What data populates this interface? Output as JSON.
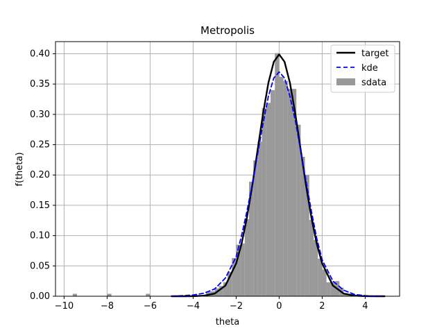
{
  "chart_data": {
    "type": "histogram+line",
    "title": "Metropolis",
    "xlabel": "theta",
    "ylabel": "f(theta)",
    "xlim": [
      -10.4,
      5.6
    ],
    "ylim": [
      0,
      0.42
    ],
    "grid": true,
    "legend_placement": "top-right",
    "x_ticks": [
      -10,
      -8,
      -6,
      -4,
      -2,
      0,
      2,
      4
    ],
    "y_ticks": [
      0.0,
      0.05,
      0.1,
      0.15,
      0.2,
      0.25,
      0.3,
      0.35,
      0.4
    ],
    "series": [
      {
        "name": "target",
        "kind": "line",
        "color": "#000000",
        "style": "solid",
        "x": [
          -5.0,
          -4.5,
          -4.0,
          -3.5,
          -3.0,
          -2.5,
          -2.0,
          -1.75,
          -1.5,
          -1.25,
          -1.0,
          -0.75,
          -0.5,
          -0.25,
          0.0,
          0.25,
          0.5,
          0.75,
          1.0,
          1.25,
          1.5,
          1.75,
          2.0,
          2.5,
          3.0,
          3.5,
          4.0,
          4.5,
          4.9
        ],
        "y": [
          0.0,
          0.0,
          0.0001,
          0.0009,
          0.0044,
          0.0175,
          0.054,
          0.0863,
          0.1295,
          0.1826,
          0.242,
          0.3011,
          0.3521,
          0.3867,
          0.3989,
          0.3867,
          0.3521,
          0.3011,
          0.242,
          0.1826,
          0.1295,
          0.0863,
          0.054,
          0.0175,
          0.0044,
          0.0009,
          0.0001,
          0.0,
          0.0
        ]
      },
      {
        "name": "kde",
        "kind": "line",
        "color": "#0000ff",
        "style": "dashed",
        "x": [
          -5.0,
          -4.5,
          -4.0,
          -3.5,
          -3.0,
          -2.5,
          -2.0,
          -1.75,
          -1.5,
          -1.25,
          -1.0,
          -0.75,
          -0.5,
          -0.25,
          0.0,
          0.25,
          0.5,
          0.75,
          1.0,
          1.25,
          1.5,
          1.75,
          2.0,
          2.5,
          3.0,
          3.5,
          4.0,
          4.5,
          4.9
        ],
        "y": [
          0.0,
          0.001,
          0.002,
          0.005,
          0.012,
          0.03,
          0.065,
          0.1,
          0.14,
          0.185,
          0.235,
          0.285,
          0.33,
          0.36,
          0.37,
          0.36,
          0.33,
          0.29,
          0.24,
          0.19,
          0.14,
          0.095,
          0.06,
          0.025,
          0.01,
          0.003,
          0.001,
          0.0,
          0.0
        ]
      },
      {
        "name": "sdata",
        "kind": "histogram",
        "color": "#999999",
        "bin_width": 0.2,
        "bins": [
          {
            "x0": -9.6,
            "height": 0.004
          },
          {
            "x0": -8.0,
            "height": 0.004
          },
          {
            "x0": -6.2,
            "height": 0.004
          },
          {
            "x0": -4.0,
            "height": 0.002
          },
          {
            "x0": -3.6,
            "height": 0.002
          },
          {
            "x0": -3.4,
            "height": 0.008
          },
          {
            "x0": -3.2,
            "height": 0.008
          },
          {
            "x0": -3.0,
            "height": 0.013
          },
          {
            "x0": -2.8,
            "height": 0.017
          },
          {
            "x0": -2.6,
            "height": 0.023
          },
          {
            "x0": -2.4,
            "height": 0.04
          },
          {
            "x0": -2.2,
            "height": 0.063
          },
          {
            "x0": -2.0,
            "height": 0.085
          },
          {
            "x0": -1.8,
            "height": 0.087
          },
          {
            "x0": -1.6,
            "height": 0.127
          },
          {
            "x0": -1.4,
            "height": 0.189
          },
          {
            "x0": -1.2,
            "height": 0.224
          },
          {
            "x0": -1.0,
            "height": 0.255
          },
          {
            "x0": -0.8,
            "height": 0.31
          },
          {
            "x0": -0.6,
            "height": 0.319
          },
          {
            "x0": -0.4,
            "height": 0.34
          },
          {
            "x0": -0.2,
            "height": 0.401
          },
          {
            "x0": 0.0,
            "height": 0.362
          },
          {
            "x0": 0.2,
            "height": 0.355
          },
          {
            "x0": 0.4,
            "height": 0.342
          },
          {
            "x0": 0.6,
            "height": 0.342
          },
          {
            "x0": 0.8,
            "height": 0.283
          },
          {
            "x0": 1.0,
            "height": 0.23
          },
          {
            "x0": 1.2,
            "height": 0.2
          },
          {
            "x0": 1.4,
            "height": 0.126
          },
          {
            "x0": 1.6,
            "height": 0.093
          },
          {
            "x0": 1.8,
            "height": 0.062
          },
          {
            "x0": 2.0,
            "height": 0.044
          },
          {
            "x0": 2.2,
            "height": 0.023
          },
          {
            "x0": 2.4,
            "height": 0.024
          },
          {
            "x0": 2.6,
            "height": 0.025
          },
          {
            "x0": 2.8,
            "height": 0.014
          },
          {
            "x0": 3.0,
            "height": 0.005
          },
          {
            "x0": 3.2,
            "height": 0.004
          },
          {
            "x0": 3.4,
            "height": 0.002
          },
          {
            "x0": 3.6,
            "height": 0.002
          },
          {
            "x0": 3.8,
            "height": 0.001
          }
        ]
      }
    ],
    "legend": [
      {
        "label": "target",
        "kind": "line",
        "color": "#000000",
        "style": "solid"
      },
      {
        "label": "kde",
        "kind": "line",
        "color": "#0000ff",
        "style": "dashed"
      },
      {
        "label": "sdata",
        "kind": "patch",
        "color": "#999999"
      }
    ]
  }
}
